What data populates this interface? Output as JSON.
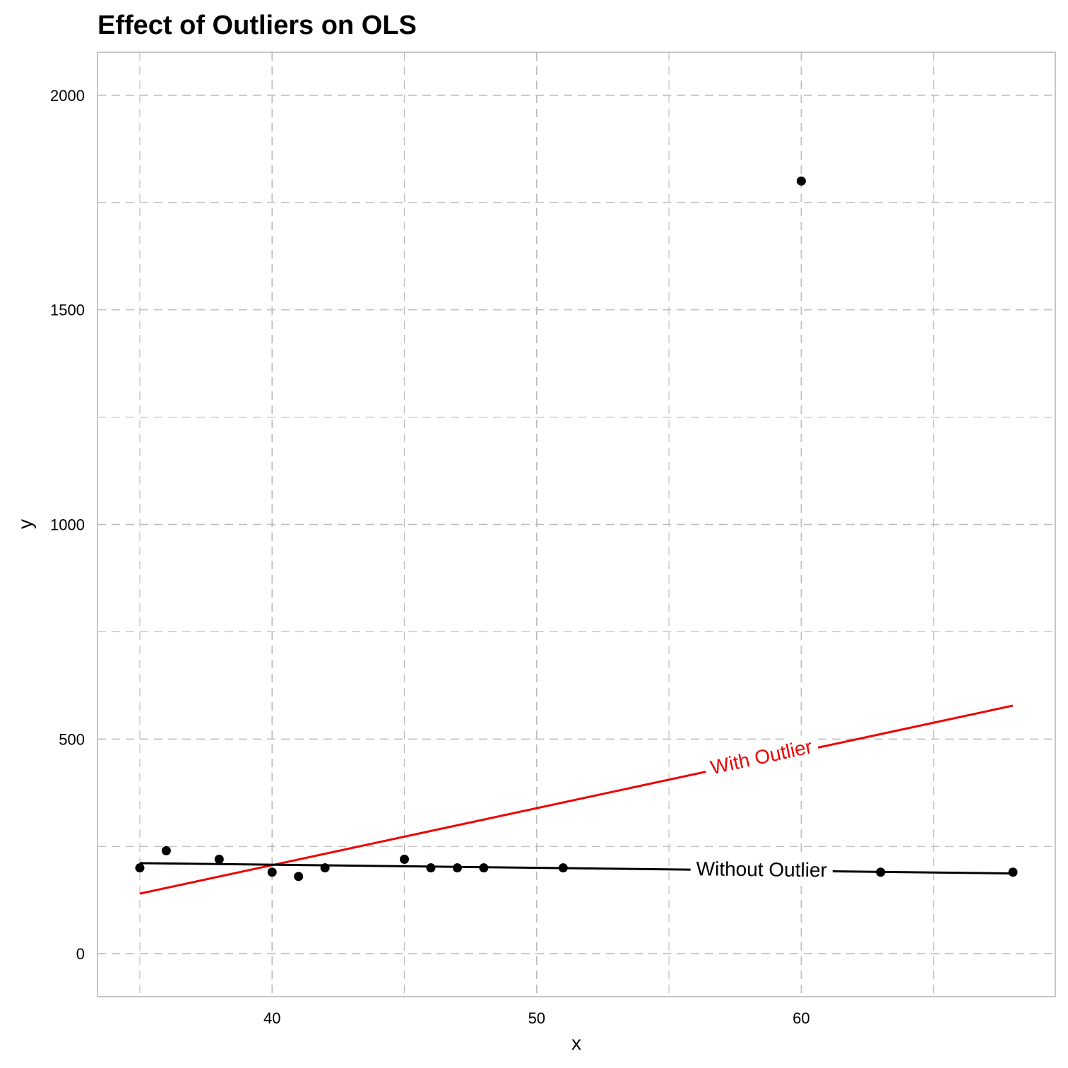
{
  "chart_data": {
    "type": "scatter",
    "title": "Effect of Outliers on OLS",
    "xlabel": "x",
    "ylabel": "y",
    "xlim": [
      33.4,
      69.6
    ],
    "ylim": [
      -100,
      2100
    ],
    "x_ticks": [
      40,
      50,
      60
    ],
    "y_ticks": [
      0,
      500,
      1000,
      1500,
      2000
    ],
    "grid": true,
    "points": [
      {
        "x": 35,
        "y": 200
      },
      {
        "x": 36,
        "y": 240
      },
      {
        "x": 38,
        "y": 220
      },
      {
        "x": 40,
        "y": 190
      },
      {
        "x": 41,
        "y": 180
      },
      {
        "x": 42,
        "y": 200
      },
      {
        "x": 45,
        "y": 220
      },
      {
        "x": 46,
        "y": 200
      },
      {
        "x": 47,
        "y": 200
      },
      {
        "x": 48,
        "y": 200
      },
      {
        "x": 51,
        "y": 200
      },
      {
        "x": 56,
        "y": 190
      },
      {
        "x": 60,
        "y": 1800
      },
      {
        "x": 63,
        "y": 190
      },
      {
        "x": 68,
        "y": 190
      }
    ],
    "lines": [
      {
        "name": "With Outlier",
        "color": "#ee0000",
        "x": [
          35,
          68
        ],
        "y": [
          140,
          578
        ],
        "label_x": 58.5,
        "label_y": 455
      },
      {
        "name": "Without Outlier",
        "color": "#000000",
        "x": [
          35,
          68
        ],
        "y": [
          211,
          187
        ],
        "label_x": 58.5,
        "label_y": 193
      }
    ],
    "colors": {
      "points": "#000000",
      "grid": "#bbbbbb",
      "border": "#b3b3b3"
    }
  }
}
